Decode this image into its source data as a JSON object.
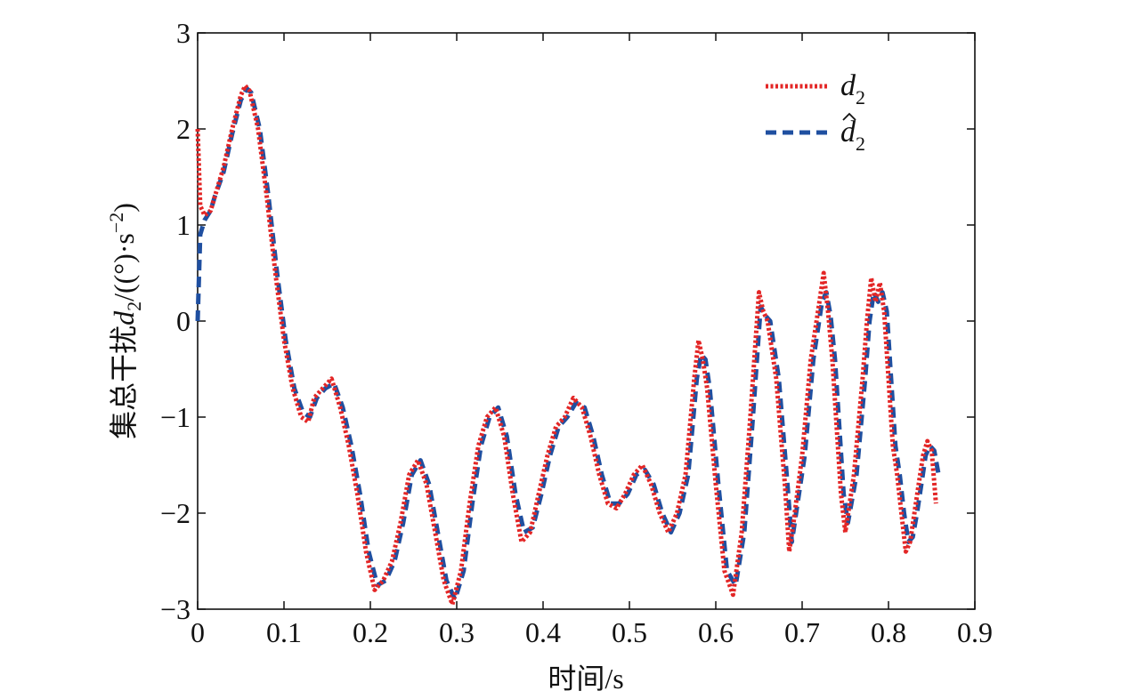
{
  "chart_data": {
    "type": "line",
    "xlabel": "时间/s",
    "ylabel": {
      "prefix": "集总干扰",
      "var": "d",
      "sub": "2",
      "unit_open": "/((°)·s",
      "unit_sup": "−2",
      "unit_close": ")"
    },
    "xlim": [
      0,
      0.9
    ],
    "ylim": [
      -3,
      3
    ],
    "xticks": [
      0,
      0.1,
      0.2,
      0.3,
      0.4,
      0.5,
      0.6,
      0.7,
      0.8,
      0.9
    ],
    "xtick_labels": [
      "0",
      "0.1",
      "0.2",
      "0.3",
      "0.4",
      "0.5",
      "0.6",
      "0.7",
      "0.8",
      "0.9"
    ],
    "yticks": [
      -3,
      -2,
      -1,
      0,
      1,
      2,
      3
    ],
    "ytick_labels": [
      "−3",
      "−2",
      "−1",
      "0",
      "1",
      "2",
      "3"
    ],
    "grid": false,
    "legend_position": "top-right",
    "series": [
      {
        "var": "d",
        "sub": "2",
        "hat": false,
        "color": "#e32626",
        "style": "dotted",
        "points": [
          [
            0,
            2.0
          ],
          [
            0.003,
            1.2
          ],
          [
            0.008,
            1.1
          ],
          [
            0.015,
            1.15
          ],
          [
            0.02,
            1.3
          ],
          [
            0.03,
            1.6
          ],
          [
            0.04,
            2.0
          ],
          [
            0.05,
            2.35
          ],
          [
            0.055,
            2.45
          ],
          [
            0.06,
            2.4
          ],
          [
            0.07,
            2.0
          ],
          [
            0.08,
            1.3
          ],
          [
            0.09,
            0.5
          ],
          [
            0.1,
            -0.2
          ],
          [
            0.11,
            -0.7
          ],
          [
            0.12,
            -1.0
          ],
          [
            0.128,
            -1.05
          ],
          [
            0.135,
            -0.8
          ],
          [
            0.145,
            -0.7
          ],
          [
            0.155,
            -0.6
          ],
          [
            0.165,
            -0.9
          ],
          [
            0.175,
            -1.3
          ],
          [
            0.185,
            -1.8
          ],
          [
            0.195,
            -2.4
          ],
          [
            0.205,
            -2.8
          ],
          [
            0.215,
            -2.7
          ],
          [
            0.225,
            -2.5
          ],
          [
            0.235,
            -2.1
          ],
          [
            0.245,
            -1.6
          ],
          [
            0.255,
            -1.45
          ],
          [
            0.265,
            -1.7
          ],
          [
            0.275,
            -2.2
          ],
          [
            0.285,
            -2.7
          ],
          [
            0.295,
            -2.95
          ],
          [
            0.305,
            -2.6
          ],
          [
            0.315,
            -1.9
          ],
          [
            0.325,
            -1.3
          ],
          [
            0.335,
            -1.0
          ],
          [
            0.345,
            -0.9
          ],
          [
            0.355,
            -1.2
          ],
          [
            0.365,
            -1.8
          ],
          [
            0.375,
            -2.3
          ],
          [
            0.385,
            -2.2
          ],
          [
            0.395,
            -1.8
          ],
          [
            0.405,
            -1.4
          ],
          [
            0.415,
            -1.1
          ],
          [
            0.425,
            -1.0
          ],
          [
            0.435,
            -0.8
          ],
          [
            0.445,
            -0.9
          ],
          [
            0.455,
            -1.2
          ],
          [
            0.465,
            -1.6
          ],
          [
            0.475,
            -1.9
          ],
          [
            0.485,
            -1.95
          ],
          [
            0.495,
            -1.8
          ],
          [
            0.505,
            -1.6
          ],
          [
            0.515,
            -1.5
          ],
          [
            0.525,
            -1.7
          ],
          [
            0.535,
            -2.0
          ],
          [
            0.545,
            -2.2
          ],
          [
            0.555,
            -2.0
          ],
          [
            0.565,
            -1.6
          ],
          [
            0.575,
            -0.6
          ],
          [
            0.58,
            -0.2
          ],
          [
            0.585,
            -0.4
          ],
          [
            0.59,
            -0.7
          ],
          [
            0.6,
            -1.7
          ],
          [
            0.61,
            -2.6
          ],
          [
            0.62,
            -2.85
          ],
          [
            0.63,
            -2.2
          ],
          [
            0.64,
            -1.0
          ],
          [
            0.65,
            0.3
          ],
          [
            0.655,
            0.1
          ],
          [
            0.66,
            0.0
          ],
          [
            0.67,
            -0.6
          ],
          [
            0.68,
            -1.7
          ],
          [
            0.685,
            -2.4
          ],
          [
            0.69,
            -2.1
          ],
          [
            0.7,
            -1.4
          ],
          [
            0.71,
            -0.4
          ],
          [
            0.72,
            0.2
          ],
          [
            0.725,
            0.5
          ],
          [
            0.73,
            0.1
          ],
          [
            0.735,
            -0.4
          ],
          [
            0.745,
            -1.8
          ],
          [
            0.75,
            -2.2
          ],
          [
            0.76,
            -1.6
          ],
          [
            0.77,
            -0.6
          ],
          [
            0.775,
            0.0
          ],
          [
            0.78,
            0.45
          ],
          [
            0.785,
            0.2
          ],
          [
            0.79,
            0.4
          ],
          [
            0.795,
            0.1
          ],
          [
            0.8,
            -0.6
          ],
          [
            0.805,
            -1.3
          ],
          [
            0.81,
            -1.6
          ],
          [
            0.815,
            -2.0
          ],
          [
            0.82,
            -2.4
          ],
          [
            0.825,
            -2.3
          ],
          [
            0.83,
            -2.0
          ],
          [
            0.835,
            -1.7
          ],
          [
            0.84,
            -1.4
          ],
          [
            0.845,
            -1.25
          ],
          [
            0.85,
            -1.35
          ],
          [
            0.855,
            -1.9
          ]
        ]
      },
      {
        "var": "d",
        "sub": "2",
        "hat": true,
        "color": "#1f4fa0",
        "style": "dashed",
        "points": [
          [
            0,
            0.0
          ],
          [
            0.003,
            0.9
          ],
          [
            0.008,
            1.05
          ],
          [
            0.015,
            1.15
          ],
          [
            0.02,
            1.3
          ],
          [
            0.03,
            1.55
          ],
          [
            0.04,
            1.95
          ],
          [
            0.05,
            2.3
          ],
          [
            0.057,
            2.42
          ],
          [
            0.062,
            2.38
          ],
          [
            0.072,
            2.0
          ],
          [
            0.082,
            1.3
          ],
          [
            0.092,
            0.5
          ],
          [
            0.102,
            -0.2
          ],
          [
            0.112,
            -0.7
          ],
          [
            0.122,
            -0.95
          ],
          [
            0.13,
            -1.0
          ],
          [
            0.138,
            -0.8
          ],
          [
            0.148,
            -0.7
          ],
          [
            0.158,
            -0.65
          ],
          [
            0.168,
            -0.9
          ],
          [
            0.178,
            -1.3
          ],
          [
            0.188,
            -1.8
          ],
          [
            0.198,
            -2.4
          ],
          [
            0.208,
            -2.75
          ],
          [
            0.218,
            -2.7
          ],
          [
            0.228,
            -2.5
          ],
          [
            0.238,
            -2.1
          ],
          [
            0.248,
            -1.6
          ],
          [
            0.258,
            -1.45
          ],
          [
            0.268,
            -1.7
          ],
          [
            0.278,
            -2.2
          ],
          [
            0.288,
            -2.7
          ],
          [
            0.298,
            -2.9
          ],
          [
            0.308,
            -2.6
          ],
          [
            0.318,
            -1.9
          ],
          [
            0.328,
            -1.3
          ],
          [
            0.338,
            -1.0
          ],
          [
            0.348,
            -0.9
          ],
          [
            0.358,
            -1.2
          ],
          [
            0.368,
            -1.8
          ],
          [
            0.378,
            -2.2
          ],
          [
            0.388,
            -2.15
          ],
          [
            0.398,
            -1.8
          ],
          [
            0.408,
            -1.4
          ],
          [
            0.418,
            -1.1
          ],
          [
            0.428,
            -1.0
          ],
          [
            0.438,
            -0.85
          ],
          [
            0.448,
            -0.9
          ],
          [
            0.458,
            -1.2
          ],
          [
            0.468,
            -1.6
          ],
          [
            0.478,
            -1.9
          ],
          [
            0.488,
            -1.9
          ],
          [
            0.498,
            -1.8
          ],
          [
            0.508,
            -1.6
          ],
          [
            0.518,
            -1.55
          ],
          [
            0.528,
            -1.7
          ],
          [
            0.538,
            -2.0
          ],
          [
            0.548,
            -2.2
          ],
          [
            0.558,
            -2.0
          ],
          [
            0.568,
            -1.6
          ],
          [
            0.578,
            -0.6
          ],
          [
            0.583,
            -0.35
          ],
          [
            0.588,
            -0.4
          ],
          [
            0.593,
            -0.7
          ],
          [
            0.603,
            -1.7
          ],
          [
            0.613,
            -2.6
          ],
          [
            0.623,
            -2.75
          ],
          [
            0.633,
            -2.2
          ],
          [
            0.643,
            -1.0
          ],
          [
            0.652,
            0.15
          ],
          [
            0.658,
            0.05
          ],
          [
            0.663,
            0.0
          ],
          [
            0.673,
            -0.6
          ],
          [
            0.683,
            -1.7
          ],
          [
            0.688,
            -2.3
          ],
          [
            0.693,
            -2.0
          ],
          [
            0.703,
            -1.4
          ],
          [
            0.713,
            -0.4
          ],
          [
            0.723,
            0.2
          ],
          [
            0.728,
            0.3
          ],
          [
            0.733,
            0.05
          ],
          [
            0.738,
            -0.4
          ],
          [
            0.748,
            -1.8
          ],
          [
            0.753,
            -2.1
          ],
          [
            0.763,
            -1.6
          ],
          [
            0.773,
            -0.6
          ],
          [
            0.778,
            0.0
          ],
          [
            0.783,
            0.3
          ],
          [
            0.788,
            0.2
          ],
          [
            0.793,
            0.3
          ],
          [
            0.798,
            0.1
          ],
          [
            0.803,
            -0.6
          ],
          [
            0.808,
            -1.3
          ],
          [
            0.813,
            -1.6
          ],
          [
            0.818,
            -2.0
          ],
          [
            0.823,
            -2.3
          ],
          [
            0.828,
            -2.25
          ],
          [
            0.833,
            -2.0
          ],
          [
            0.838,
            -1.7
          ],
          [
            0.843,
            -1.4
          ],
          [
            0.848,
            -1.3
          ],
          [
            0.853,
            -1.35
          ],
          [
            0.858,
            -1.6
          ]
        ]
      }
    ]
  }
}
